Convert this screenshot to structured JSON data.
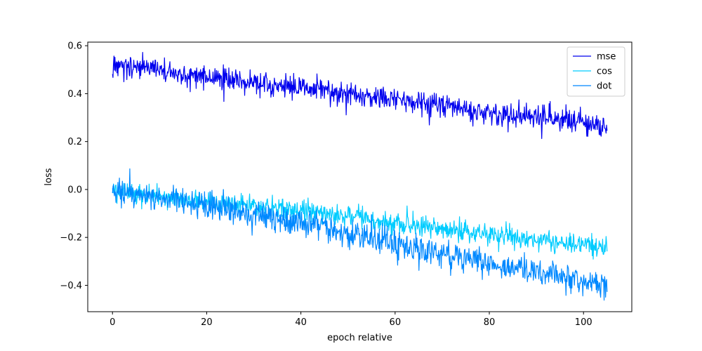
{
  "chart_data": {
    "type": "line",
    "title": "",
    "xlabel": "epoch relative",
    "ylabel": "loss",
    "xlim": [
      -5.25,
      110.25
    ],
    "ylim": [
      -0.51,
      0.615
    ],
    "xticks": [
      0,
      20,
      40,
      60,
      80,
      100
    ],
    "xtick_labels": [
      "0",
      "20",
      "40",
      "60",
      "80",
      "100"
    ],
    "yticks": [
      -0.4,
      -0.2,
      0.0,
      0.2,
      0.4,
      0.6
    ],
    "ytick_labels": [
      "−0.4",
      "−0.2",
      "0.0",
      "0.2",
      "0.4",
      "0.6"
    ],
    "grid": false,
    "legend_position": "top-right",
    "x_range": [
      0,
      105
    ],
    "series": [
      {
        "name": "mse",
        "color": "#0000ee",
        "trend": [
          [
            0,
            0.525
          ],
          [
            10,
            0.495
          ],
          [
            20,
            0.47
          ],
          [
            40,
            0.425
          ],
          [
            60,
            0.375
          ],
          [
            80,
            0.325
          ],
          [
            100,
            0.28
          ],
          [
            105,
            0.265
          ]
        ],
        "noise": 0.07,
        "n_points": 1000
      },
      {
        "name": "cos",
        "color": "#00ccff",
        "trend": [
          [
            0,
            0.0
          ],
          [
            10,
            -0.03
          ],
          [
            20,
            -0.05
          ],
          [
            40,
            -0.09
          ],
          [
            60,
            -0.14
          ],
          [
            80,
            -0.185
          ],
          [
            100,
            -0.235
          ],
          [
            105,
            -0.25
          ]
        ],
        "noise": 0.06,
        "n_points": 1000
      },
      {
        "name": "dot",
        "color": "#0088ff",
        "trend": [
          [
            0,
            0.0
          ],
          [
            10,
            -0.03
          ],
          [
            20,
            -0.065
          ],
          [
            40,
            -0.145
          ],
          [
            60,
            -0.225
          ],
          [
            80,
            -0.31
          ],
          [
            100,
            -0.38
          ],
          [
            105,
            -0.4
          ]
        ],
        "noise": 0.085,
        "n_points": 1000
      }
    ]
  }
}
